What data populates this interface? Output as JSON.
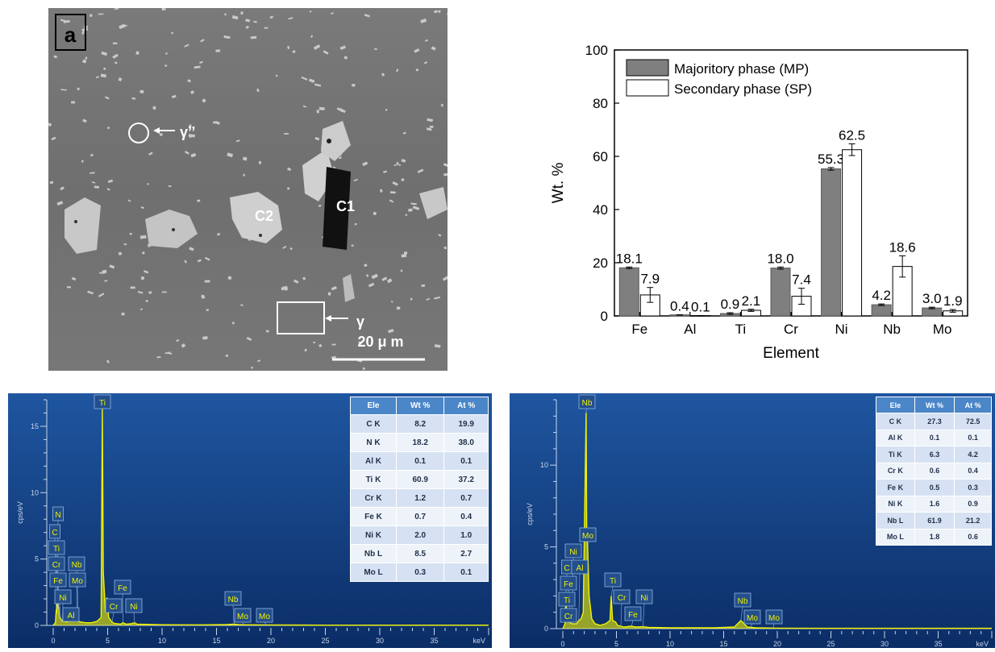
{
  "micrograph": {
    "panel_label": "a",
    "labels": {
      "gamma_dprime": "γ’’",
      "c1": "C1",
      "c2": "C2",
      "gamma": "γ"
    },
    "scale_bar": "20 μ m"
  },
  "chart_data": [
    {
      "type": "bar",
      "title": "",
      "xlabel": "Element",
      "ylabel": "Wt. %",
      "ylim": [
        0,
        100
      ],
      "yticks": [
        0,
        20,
        40,
        60,
        80,
        100
      ],
      "categories": [
        "Fe",
        "Al",
        "Ti",
        "Cr",
        "Ni",
        "Nb",
        "Mo"
      ],
      "series": [
        {
          "name": "Majoritory phase (MP)",
          "color": "#7f7f7f",
          "values": [
            18.1,
            0.4,
            0.9,
            18.0,
            55.3,
            4.2,
            3.0
          ],
          "labels": [
            "18.1",
            "0.4",
            "0.9",
            "18.0",
            "55.3",
            "4.2",
            "3.0"
          ],
          "errors": [
            0.3,
            0.05,
            0.3,
            0.4,
            0.5,
            0.3,
            0.3
          ]
        },
        {
          "name": "Secondary phase (SP)",
          "color": "#ffffff",
          "values": [
            7.9,
            0.1,
            2.1,
            7.4,
            62.5,
            18.6,
            1.9
          ],
          "labels": [
            "7.9",
            "0.1",
            "2.1",
            "7.4",
            "62.5",
            "18.6",
            "1.9"
          ],
          "errors": [
            2.8,
            0.05,
            0.4,
            3.0,
            2.2,
            4.0,
            0.5
          ]
        }
      ],
      "legend": "top-left",
      "grid": false
    },
    {
      "type": "line",
      "title": "",
      "xlabel": "keV",
      "ylabel": "cps/eV",
      "xlim": [
        0,
        40
      ],
      "ylim": [
        0,
        17
      ],
      "xticks": [
        0,
        5,
        10,
        15,
        20,
        25,
        30,
        35
      ],
      "yticks": [
        0,
        5,
        10,
        15
      ],
      "series": [
        {
          "name": "",
          "color": "#f2f200",
          "x": [
            0.0,
            0.2,
            0.28,
            0.3,
            0.39,
            0.45,
            0.5,
            0.57,
            0.7,
            0.85,
            1.0,
            1.3,
            1.49,
            1.6,
            1.8,
            2.0,
            2.17,
            2.3,
            2.6,
            3.0,
            3.5,
            4.0,
            4.4,
            4.51,
            4.6,
            4.8,
            4.93,
            5.1,
            5.41,
            5.6,
            6.2,
            6.4,
            6.7,
            7.1,
            7.48,
            7.7,
            8.5,
            10,
            12,
            14,
            16.0,
            16.6,
            17.0,
            17.5,
            18.5,
            20,
            25,
            30,
            35,
            40
          ],
          "y": [
            0.0,
            0.2,
            1.2,
            0.9,
            2.1,
            1.2,
            1.4,
            0.6,
            0.5,
            0.3,
            0.3,
            0.25,
            0.4,
            0.3,
            0.35,
            0.4,
            0.45,
            0.3,
            0.25,
            0.2,
            0.2,
            0.3,
            0.6,
            16.3,
            4.0,
            1.0,
            2.1,
            0.6,
            0.25,
            0.15,
            0.1,
            0.2,
            0.1,
            0.12,
            0.2,
            0.1,
            0.08,
            0.05,
            0.04,
            0.04,
            0.06,
            0.1,
            0.06,
            0.05,
            0.04,
            0.03,
            0.02,
            0.02,
            0.02,
            0.02
          ]
        }
      ],
      "peak_labels": [
        {
          "text": "Ti",
          "x": 4.51
        },
        {
          "text": "N",
          "x": 0.39
        },
        {
          "text": "C",
          "x": 0.28
        },
        {
          "text": "Ti",
          "x": 0.45
        },
        {
          "text": "Cr",
          "x": 0.57
        },
        {
          "text": "Nb",
          "x": 2.17
        },
        {
          "text": "Fe",
          "x": 0.7
        },
        {
          "text": "Mo",
          "x": 2.3
        },
        {
          "text": "Ni",
          "x": 0.85
        },
        {
          "text": "Al",
          "x": 1.49
        },
        {
          "text": "Fe",
          "x": 6.4
        },
        {
          "text": "Cr",
          "x": 5.41
        },
        {
          "text": "Ni",
          "x": 7.48
        },
        {
          "text": "Nb",
          "x": 16.6
        },
        {
          "text": "Mo",
          "x": 17.5
        },
        {
          "text": "Mo",
          "x": 19.6
        }
      ],
      "table": {
        "headers": [
          "Ele",
          "Wt %",
          "At %"
        ],
        "rows": [
          [
            "C K",
            "8.2",
            "19.9"
          ],
          [
            "N K",
            "18.2",
            "38.0"
          ],
          [
            "Al K",
            "0.1",
            "0.1"
          ],
          [
            "Ti K",
            "60.9",
            "37.2"
          ],
          [
            "Cr K",
            "1.2",
            "0.7"
          ],
          [
            "Fe K",
            "0.7",
            "0.4"
          ],
          [
            "Ni K",
            "2.0",
            "1.0"
          ],
          [
            "Nb L",
            "8.5",
            "2.7"
          ],
          [
            "Mo L",
            "0.3",
            "0.1"
          ]
        ]
      }
    },
    {
      "type": "line",
      "title": "",
      "xlabel": "keV",
      "ylabel": "cps/eV",
      "xlim": [
        0,
        40
      ],
      "ylim": [
        0,
        14
      ],
      "xticks": [
        0,
        5,
        10,
        15,
        20,
        25,
        30,
        35
      ],
      "yticks": [
        0,
        5,
        10
      ],
      "series": [
        {
          "name": "",
          "color": "#f2f200",
          "x": [
            0.0,
            0.2,
            0.28,
            0.35,
            0.45,
            0.55,
            0.7,
            0.85,
            1.0,
            1.3,
            1.49,
            1.7,
            1.9,
            2.17,
            2.23,
            2.3,
            2.45,
            2.7,
            3.0,
            3.5,
            4.0,
            4.4,
            4.51,
            4.65,
            4.93,
            5.1,
            5.41,
            5.7,
            6.4,
            6.8,
            7.48,
            8,
            10,
            14,
            16.0,
            16.6,
            17.2,
            18,
            20,
            25,
            30,
            35,
            40
          ],
          "y": [
            0.0,
            0.3,
            1.8,
            0.8,
            0.6,
            0.4,
            0.35,
            0.3,
            0.3,
            0.3,
            0.5,
            0.6,
            1.0,
            13.2,
            5.5,
            5.4,
            2.0,
            0.6,
            0.3,
            0.2,
            0.3,
            0.5,
            2.0,
            0.5,
            0.4,
            0.2,
            0.15,
            0.1,
            0.15,
            0.1,
            0.12,
            0.08,
            0.05,
            0.05,
            0.1,
            0.5,
            0.1,
            0.05,
            0.03,
            0.02,
            0.02,
            0.02,
            0.02
          ]
        }
      ],
      "peak_labels": [
        {
          "text": "Nb",
          "x": 2.17
        },
        {
          "text": "Mo",
          "x": 2.3
        },
        {
          "text": "Ni",
          "x": 0.85
        },
        {
          "text": "C",
          "x": 0.28
        },
        {
          "text": "Al",
          "x": 1.49
        },
        {
          "text": "Fe",
          "x": 0.7
        },
        {
          "text": "Ti",
          "x": 0.45
        },
        {
          "text": "Cr",
          "x": 0.57
        },
        {
          "text": "Ti",
          "x": 4.51
        },
        {
          "text": "Cr",
          "x": 5.41
        },
        {
          "text": "Ni",
          "x": 7.48
        },
        {
          "text": "Fe",
          "x": 6.4
        },
        {
          "text": "Nb",
          "x": 16.6
        },
        {
          "text": "Mo",
          "x": 17.5
        },
        {
          "text": "Mo",
          "x": 19.6
        }
      ],
      "table": {
        "headers": [
          "Ele",
          "Wt %",
          "At %"
        ],
        "rows": [
          [
            "C K",
            "27.3",
            "72.5"
          ],
          [
            "Al K",
            "0.1",
            "0.1"
          ],
          [
            "Ti K",
            "6.3",
            "4.2"
          ],
          [
            "Cr K",
            "0.6",
            "0.4"
          ],
          [
            "Fe K",
            "0.5",
            "0.3"
          ],
          [
            "Ni K",
            "1.6",
            "0.9"
          ],
          [
            "Nb L",
            "61.9",
            "21.2"
          ],
          [
            "Mo L",
            "1.8",
            "0.6"
          ]
        ]
      }
    }
  ]
}
